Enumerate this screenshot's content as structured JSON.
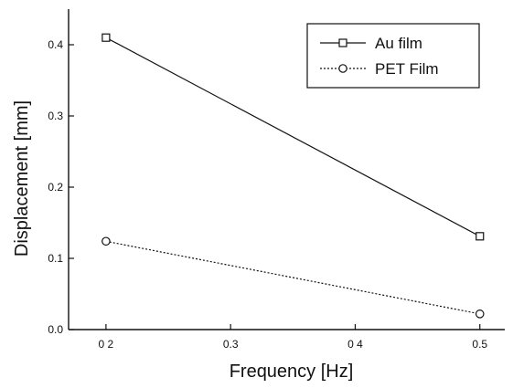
{
  "chart_data": {
    "type": "line",
    "xlabel": "Frequency [Hz]",
    "ylabel": "Displacement [mm]",
    "xlim": [
      0.17,
      0.52
    ],
    "ylim": [
      0.0,
      0.45
    ],
    "x_ticks": [
      0.2,
      0.3,
      0.4,
      0.5
    ],
    "x_tick_labels": [
      "0 2",
      "0.3",
      "0 4",
      "0.5"
    ],
    "y_ticks": [
      0.0,
      0.1,
      0.2,
      0.3,
      0.4
    ],
    "y_tick_labels": [
      "0.0",
      "0.1",
      "0.2",
      "0.3",
      "0.4"
    ],
    "grid": false,
    "legend_position": "top-right",
    "series": [
      {
        "name": "Au film",
        "marker": "square",
        "line_style": "solid",
        "color": "#111111",
        "x": [
          0.2,
          0.5
        ],
        "y": [
          0.41,
          0.131
        ]
      },
      {
        "name": "PET Film",
        "marker": "circle",
        "line_style": "dotted",
        "color": "#111111",
        "x": [
          0.2,
          0.5
        ],
        "y": [
          0.124,
          0.022
        ]
      }
    ]
  }
}
